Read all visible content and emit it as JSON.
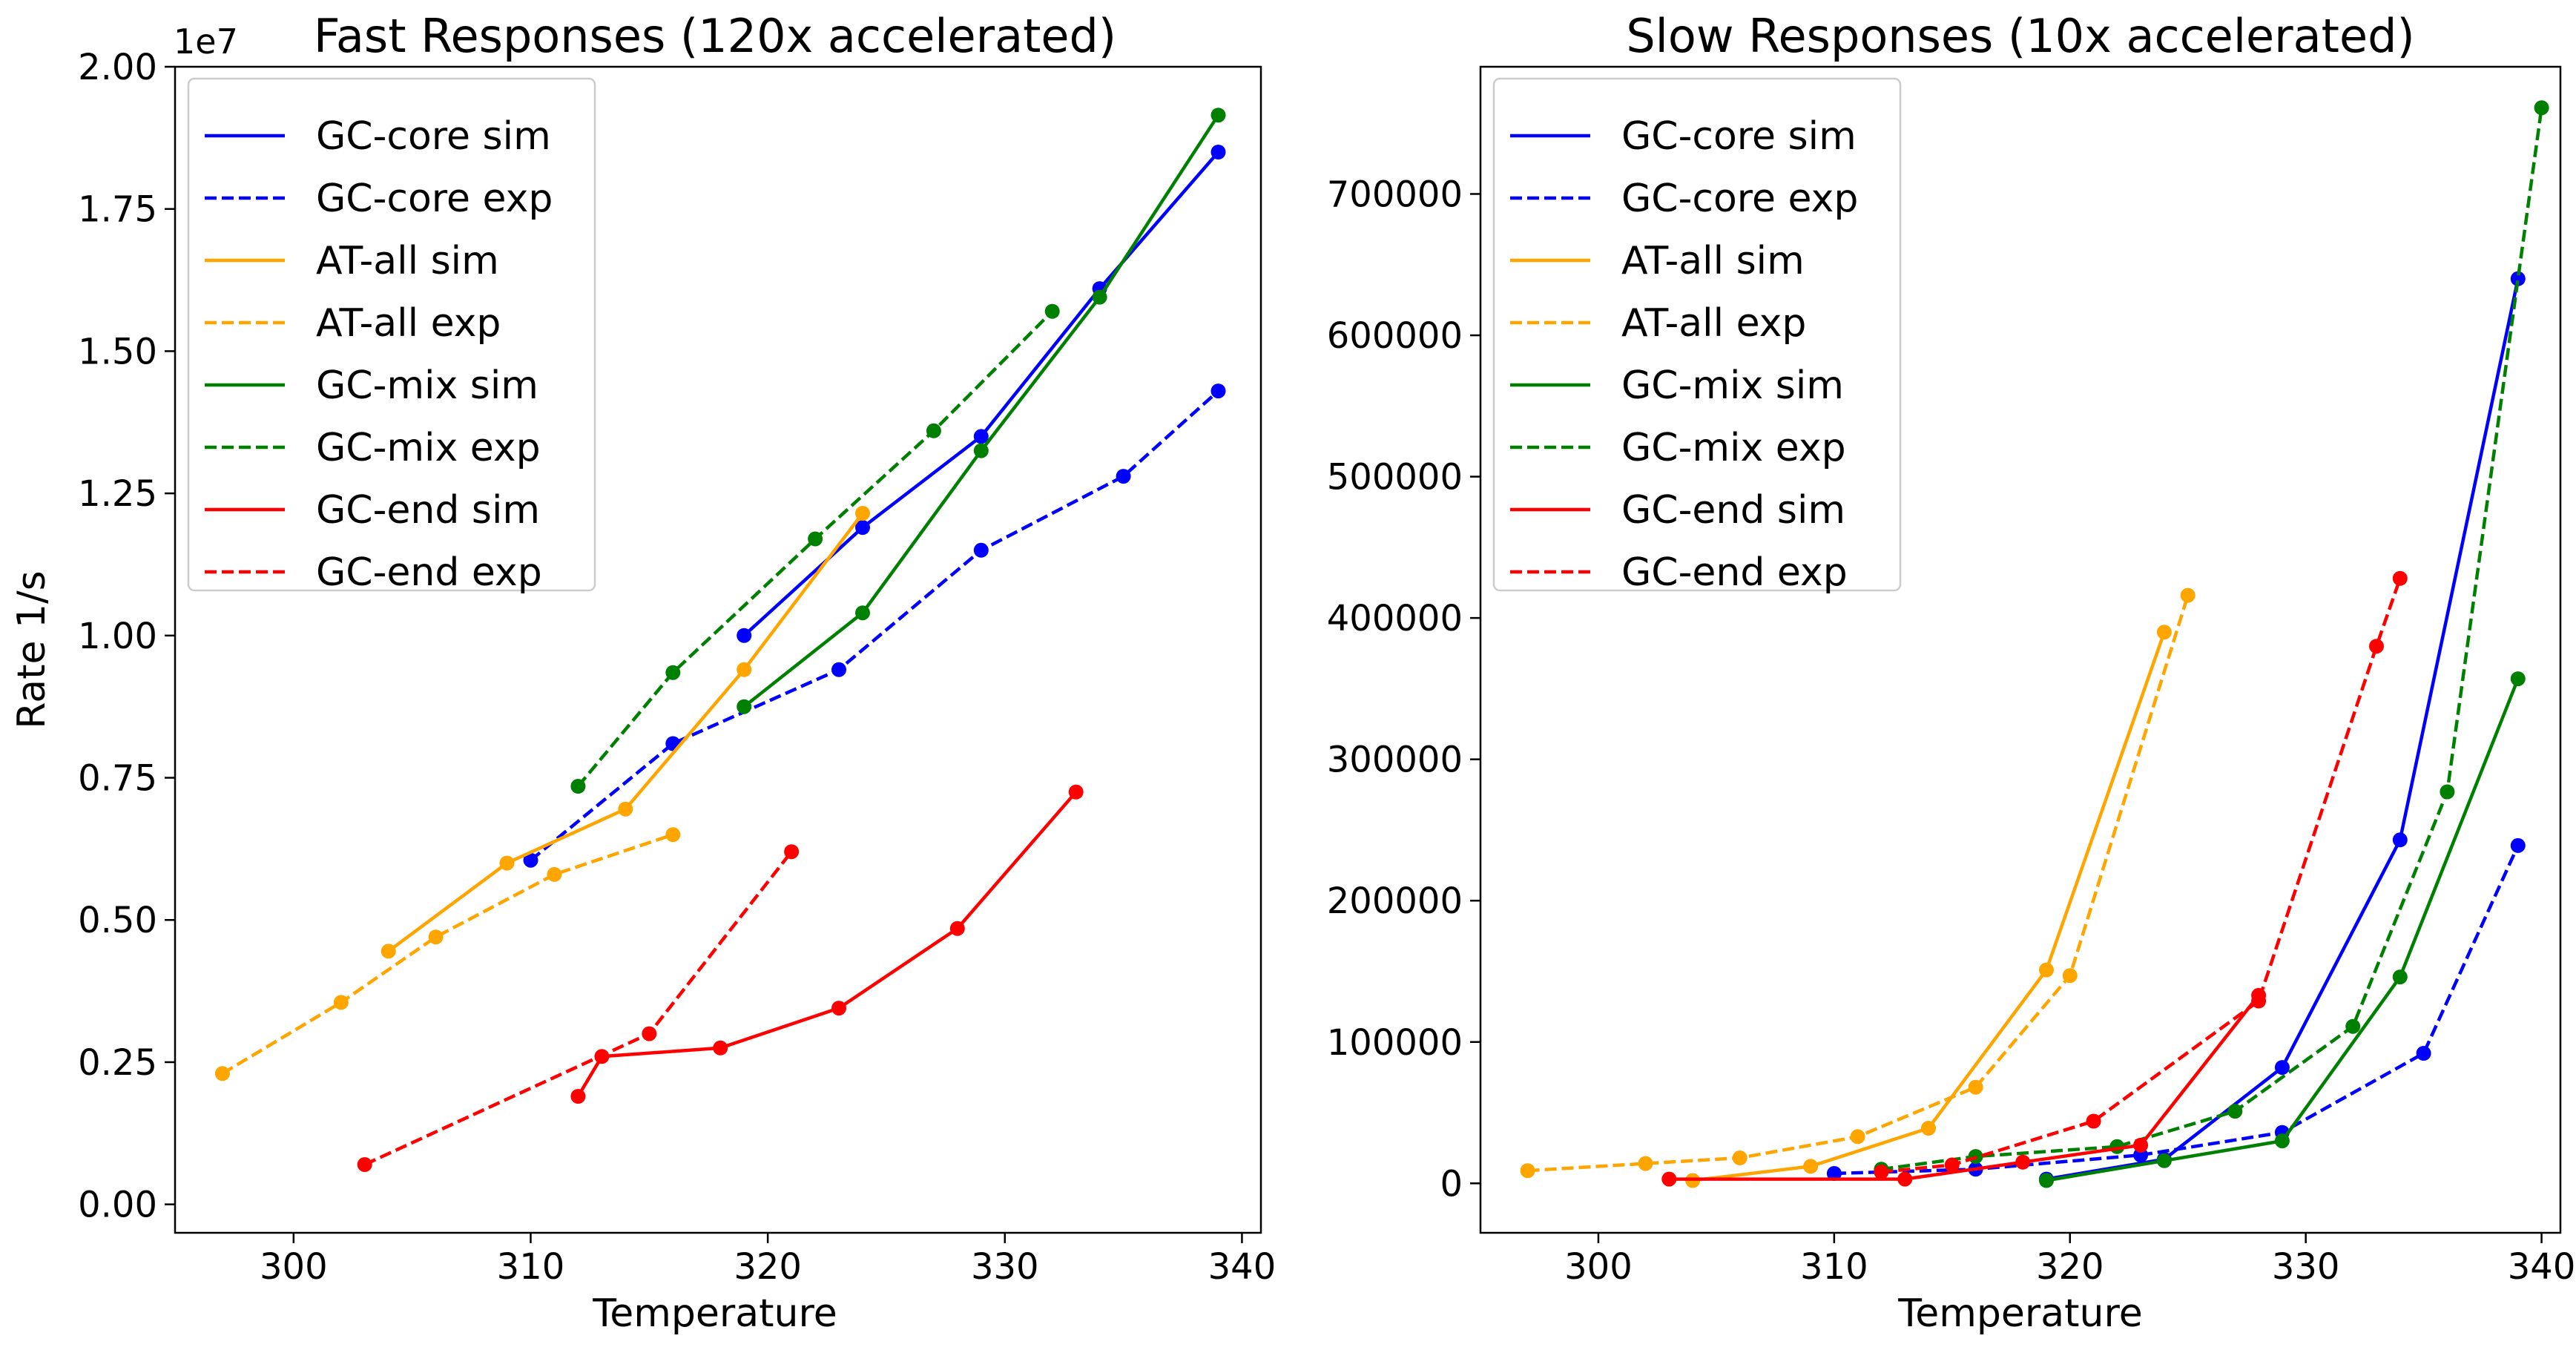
{
  "chart_data": [
    {
      "type": "line",
      "title": "Fast Responses (120x accelerated)",
      "xlabel": "Temperature",
      "ylabel": "Rate 1/s",
      "y_offset_label": "1e7",
      "xlim": [
        295,
        340.8
      ],
      "ylim": [
        -0.05,
        2.0
      ],
      "xticks": [
        300,
        310,
        320,
        330,
        340
      ],
      "xtick_labels": [
        "300",
        "310",
        "320",
        "330",
        "340"
      ],
      "yticks": [
        0.0,
        0.25,
        0.5,
        0.75,
        1.0,
        1.25,
        1.5,
        1.75,
        2.0
      ],
      "ytick_labels": [
        "0.00",
        "0.25",
        "0.50",
        "0.75",
        "1.00",
        "1.25",
        "1.50",
        "1.75",
        "2.00"
      ],
      "legend_position": "top-left",
      "series": [
        {
          "name": "GC-core sim",
          "color": "#0000ff",
          "dashed": false,
          "x": [
            319,
            324,
            329,
            334,
            339
          ],
          "y": [
            1.0,
            1.19,
            1.35,
            1.61,
            1.85
          ]
        },
        {
          "name": "GC-core exp",
          "color": "#0000ff",
          "dashed": true,
          "x": [
            310,
            316,
            323,
            329,
            335,
            339
          ],
          "y": [
            0.605,
            0.81,
            0.94,
            1.15,
            1.28,
            1.43
          ]
        },
        {
          "name": "AT-all sim",
          "color": "#ffa500",
          "dashed": false,
          "x": [
            304,
            309,
            314,
            319,
            324
          ],
          "y": [
            0.445,
            0.6,
            0.695,
            0.94,
            1.215
          ]
        },
        {
          "name": "AT-all exp",
          "color": "#ffa500",
          "dashed": true,
          "x": [
            297,
            302,
            306,
            311,
            316
          ],
          "y": [
            0.23,
            0.355,
            0.47,
            0.58,
            0.65
          ]
        },
        {
          "name": "GC-mix sim",
          "color": "#008000",
          "dashed": false,
          "x": [
            319,
            324,
            329,
            334,
            339
          ],
          "y": [
            0.875,
            1.04,
            1.325,
            1.595,
            1.915
          ]
        },
        {
          "name": "GC-mix exp",
          "color": "#008000",
          "dashed": true,
          "x": [
            312,
            316,
            322,
            327,
            332
          ],
          "y": [
            0.735,
            0.935,
            1.17,
            1.36,
            1.57
          ]
        },
        {
          "name": "GC-end sim",
          "color": "#ff0000",
          "dashed": false,
          "x": [
            312,
            313,
            318,
            323,
            328,
            333
          ],
          "y": [
            0.19,
            0.26,
            0.275,
            0.345,
            0.485,
            0.725
          ]
        },
        {
          "name": "GC-end exp",
          "color": "#ff0000",
          "dashed": true,
          "x": [
            303,
            315,
            321
          ],
          "y": [
            0.07,
            0.3,
            0.62
          ]
        }
      ]
    },
    {
      "type": "line",
      "title": "Slow Responses (10x accelerated)",
      "xlabel": "Temperature",
      "ylabel": "",
      "xlim": [
        295,
        340.8
      ],
      "ylim": [
        -35000,
        790000
      ],
      "xticks": [
        300,
        310,
        320,
        330,
        340
      ],
      "xtick_labels": [
        "300",
        "310",
        "320",
        "330",
        "340"
      ],
      "yticks": [
        0,
        100000,
        200000,
        300000,
        400000,
        500000,
        600000,
        700000
      ],
      "ytick_labels": [
        "0",
        "100000",
        "200000",
        "300000",
        "400000",
        "500000",
        "600000",
        "700000"
      ],
      "legend_position": "top-left",
      "series": [
        {
          "name": "GC-core sim",
          "color": "#0000ff",
          "dashed": false,
          "x": [
            319,
            324,
            329,
            334,
            339
          ],
          "y": [
            3000,
            17000,
            82000,
            243000,
            640000
          ]
        },
        {
          "name": "GC-core exp",
          "color": "#0000ff",
          "dashed": true,
          "x": [
            310,
            316,
            323,
            329,
            335,
            339
          ],
          "y": [
            7000,
            10000,
            20000,
            36000,
            92000,
            239000
          ]
        },
        {
          "name": "AT-all sim",
          "color": "#ffa500",
          "dashed": false,
          "x": [
            304,
            309,
            314,
            319,
            324
          ],
          "y": [
            2000,
            12000,
            39000,
            151000,
            390000
          ]
        },
        {
          "name": "AT-all exp",
          "color": "#ffa500",
          "dashed": true,
          "x": [
            297,
            302,
            306,
            311,
            316,
            320,
            325
          ],
          "y": [
            9000,
            14000,
            18000,
            33000,
            68000,
            147000,
            416000
          ]
        },
        {
          "name": "GC-mix sim",
          "color": "#008000",
          "dashed": false,
          "x": [
            319,
            324,
            329,
            334,
            339
          ],
          "y": [
            2000,
            16000,
            30000,
            146000,
            357000
          ]
        },
        {
          "name": "GC-mix exp",
          "color": "#008000",
          "dashed": true,
          "x": [
            312,
            316,
            322,
            327,
            332,
            336,
            340
          ],
          "y": [
            10000,
            19000,
            26000,
            51000,
            111000,
            277000,
            761000
          ]
        },
        {
          "name": "GC-end sim",
          "color": "#ff0000",
          "dashed": false,
          "x": [
            303,
            313,
            318,
            323,
            328
          ],
          "y": [
            3000,
            3000,
            15000,
            27000,
            133000
          ]
        },
        {
          "name": "GC-end exp",
          "color": "#ff0000",
          "dashed": true,
          "x": [
            312,
            315,
            321,
            328,
            333,
            334
          ],
          "y": [
            8000,
            13000,
            44000,
            129000,
            380000,
            428000
          ]
        }
      ]
    }
  ]
}
